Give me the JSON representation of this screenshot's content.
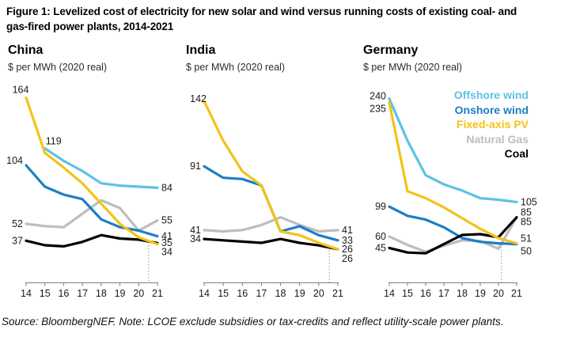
{
  "figure": {
    "title": "Figure 1: Levelized cost of electricity for new solar and wind versus running costs of existing coal- and\ngas-fired power plants, 2014-2021",
    "source_note": "Source: BloombergNEF. Note: LCOE exclude subsidies or tax-credits and reflect utility-scale power plants."
  },
  "legend": {
    "items": [
      {
        "key": "offshore",
        "label": "Offshore wind",
        "color": "#5EC1E4"
      },
      {
        "key": "onshore",
        "label": "Onshore wind",
        "color": "#1B7FC3"
      },
      {
        "key": "pv",
        "label": "Fixed-axis PV",
        "color": "#F3C317"
      },
      {
        "key": "gas",
        "label": "Natural Gas",
        "color": "#BDBDBD"
      },
      {
        "key": "coal",
        "label": "Coal",
        "color": "#000000"
      }
    ]
  },
  "chart_data": [
    {
      "type": "line",
      "title": "China",
      "unit_label": "$ per MWh (2020 real)",
      "x": [
        14,
        15,
        16,
        17,
        18,
        19,
        20,
        21
      ],
      "x_tick_labels": [
        "14",
        "15",
        "16",
        "17",
        "18",
        "19",
        "20",
        "21"
      ],
      "ylim": [
        0,
        170
      ],
      "grid": false,
      "estimate_divider_x": 20.53,
      "series": [
        {
          "key": "gas",
          "name": "Natural Gas",
          "color": "#BDBDBD",
          "x": [
            14,
            15,
            16,
            17,
            18,
            19,
            20,
            21
          ],
          "values": [
            52,
            50,
            49,
            61,
            73,
            66,
            46,
            55
          ],
          "start_label": "52",
          "end_label": "55"
        },
        {
          "key": "offshore",
          "name": "Offshore wind",
          "color": "#5EC1E4",
          "x": [
            15,
            16,
            17,
            18,
            19,
            20,
            21
          ],
          "values": [
            119,
            108,
            99,
            88,
            86,
            85,
            84
          ],
          "start_label": "119",
          "end_label": "84"
        },
        {
          "key": "onshore",
          "name": "Onshore wind",
          "color": "#1B7FC3",
          "x": [
            14,
            15,
            16,
            17,
            18,
            19,
            20,
            21
          ],
          "values": [
            104,
            85,
            78,
            74,
            56,
            49,
            46,
            41
          ],
          "start_label": "104",
          "end_label": "41"
        },
        {
          "key": "coal",
          "name": "Coal",
          "color": "#000000",
          "x": [
            14,
            15,
            16,
            17,
            18,
            19,
            20,
            21
          ],
          "values": [
            37,
            33,
            32,
            36,
            42,
            39,
            38,
            35
          ],
          "start_label": "37",
          "end_label": "35"
        },
        {
          "key": "pv",
          "name": "Fixed-axis PV",
          "color": "#F3C317",
          "x": [
            14,
            15,
            16,
            17,
            18,
            19,
            20,
            21
          ],
          "values": [
            164,
            115,
            102,
            88,
            70,
            52,
            40,
            34
          ],
          "start_label": "164",
          "end_label": "34"
        }
      ]
    },
    {
      "type": "line",
      "title": "India",
      "unit_label": "$ per MWh (2020 real)",
      "x": [
        14,
        15,
        16,
        17,
        18,
        19,
        20,
        21
      ],
      "x_tick_labels": [
        "14",
        "15",
        "16",
        "17",
        "18",
        "19",
        "20",
        "21"
      ],
      "ylim": [
        0,
        150
      ],
      "grid": false,
      "estimate_divider_x": 20.55,
      "series": [
        {
          "key": "gas",
          "name": "Natural Gas",
          "color": "#BDBDBD",
          "x": [
            14,
            15,
            16,
            17,
            18,
            19,
            20,
            21
          ],
          "values": [
            41,
            40,
            41,
            45,
            51,
            45,
            40,
            41
          ],
          "start_label": "41",
          "end_label": "41"
        },
        {
          "key": "onshore",
          "name": "Onshore wind",
          "color": "#1B7FC3",
          "x": [
            14,
            15,
            16,
            17,
            18,
            19,
            20,
            21
          ],
          "values": [
            91,
            82,
            81,
            76,
            40,
            44,
            37,
            33
          ],
          "start_label": "91",
          "end_label": "33"
        },
        {
          "key": "coal",
          "name": "Coal",
          "color": "#000000",
          "x": [
            14,
            15,
            16,
            17,
            18,
            19,
            20,
            21
          ],
          "values": [
            34,
            33,
            32,
            31,
            34,
            31,
            29,
            26
          ],
          "start_label": "34",
          "end_label": "26"
        },
        {
          "key": "pv",
          "name": "Fixed-axis PV",
          "color": "#F3C317",
          "x": [
            14,
            15,
            16,
            17,
            18,
            19,
            20,
            21
          ],
          "values": [
            142,
            111,
            87,
            76,
            40,
            37,
            31,
            26
          ],
          "start_label": "142",
          "end_label": "26"
        }
      ]
    },
    {
      "type": "line",
      "title": "Germany",
      "unit_label": "$ per MWh (2020 real)",
      "x": [
        14,
        15,
        16,
        17,
        18,
        19,
        20,
        21
      ],
      "x_tick_labels": [
        "14",
        "15",
        "16",
        "17",
        "18",
        "19",
        "20",
        "21"
      ],
      "ylim": [
        0,
        250
      ],
      "grid": false,
      "estimate_divider_x": 20.16,
      "series": [
        {
          "key": "gas",
          "name": "Natural Gas",
          "color": "#BDBDBD",
          "x": [
            14,
            15,
            16,
            17,
            18,
            19,
            20,
            21
          ],
          "values": [
            60,
            49,
            40,
            48,
            55,
            54,
            44,
            85
          ],
          "start_label": "60",
          "end_label": "85"
        },
        {
          "key": "offshore",
          "name": "Offshore wind",
          "color": "#5EC1E4",
          "x": [
            14,
            15,
            16,
            17,
            18,
            19,
            20,
            21
          ],
          "values": [
            240,
            185,
            140,
            128,
            120,
            110,
            108,
            105
          ],
          "start_label": "240",
          "end_label": "105"
        },
        {
          "key": "onshore",
          "name": "Onshore wind",
          "color": "#1B7FC3",
          "x": [
            14,
            15,
            16,
            17,
            18,
            19,
            20,
            21
          ],
          "values": [
            99,
            87,
            82,
            72,
            58,
            53,
            51,
            50
          ],
          "start_label": "99",
          "end_label": "50"
        },
        {
          "key": "coal",
          "name": "Coal",
          "color": "#000000",
          "x": [
            14,
            15,
            16,
            17,
            18,
            19,
            20,
            21
          ],
          "values": [
            45,
            39,
            38,
            50,
            62,
            63,
            59,
            85
          ],
          "start_label": "45",
          "end_label": "85"
        },
        {
          "key": "pv",
          "name": "Fixed-axis PV",
          "color": "#F3C317",
          "x": [
            14,
            15,
            16,
            17,
            18,
            19,
            20,
            21
          ],
          "values": [
            235,
            119,
            110,
            98,
            84,
            70,
            58,
            51
          ],
          "start_label": "235",
          "end_label": "51"
        }
      ]
    }
  ]
}
